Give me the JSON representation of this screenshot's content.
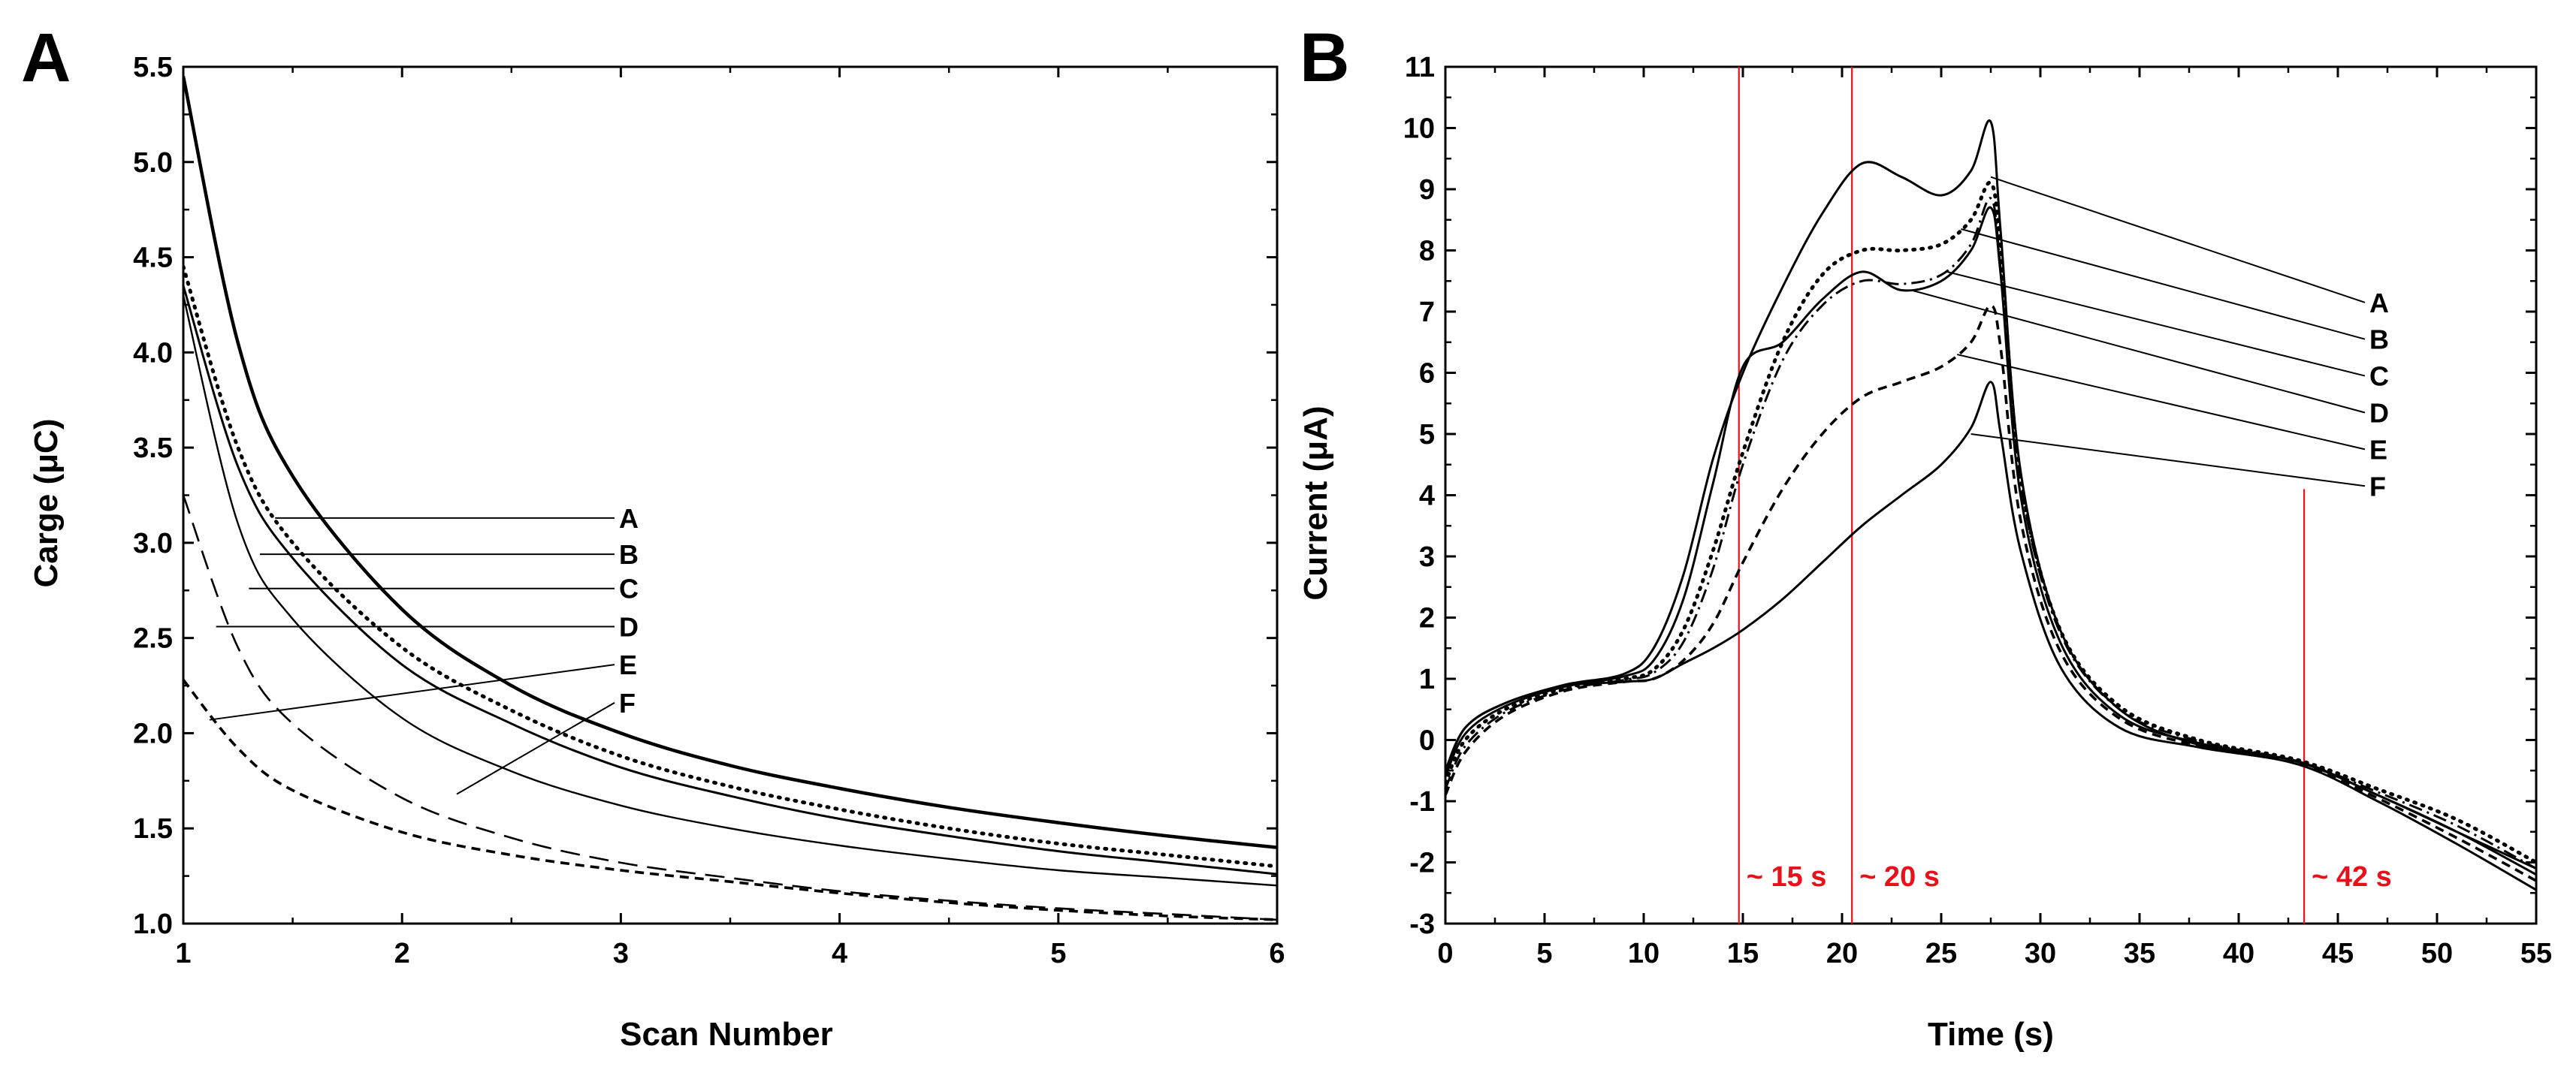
{
  "chart_data": [
    {
      "panel": "A",
      "type": "line",
      "xlabel": "Scan Number",
      "ylabel": "Carge (μC)",
      "xlim": [
        1,
        6
      ],
      "ylim": [
        1.0,
        5.5
      ],
      "xticks": [
        "1",
        "2",
        "3",
        "4",
        "5",
        "6"
      ],
      "yticks": [
        "1.0",
        "1.5",
        "2.0",
        "2.5",
        "3.0",
        "3.5",
        "4.0",
        "4.5",
        "5.0",
        "5.5"
      ],
      "grid": false,
      "series": [
        {
          "name": "A",
          "style": "solid-thick",
          "x": [
            1,
            1.25,
            1.5,
            2,
            2.5,
            3,
            3.5,
            4,
            4.5,
            5,
            5.5,
            6
          ],
          "y": [
            5.45,
            4.05,
            3.35,
            2.65,
            2.25,
            2.0,
            1.83,
            1.71,
            1.61,
            1.53,
            1.46,
            1.4
          ]
        },
        {
          "name": "B",
          "style": "dotted",
          "x": [
            1,
            1.25,
            1.5,
            2,
            2.5,
            3,
            3.5,
            4,
            4.5,
            5,
            5.5,
            6
          ],
          "y": [
            4.45,
            3.5,
            3.0,
            2.45,
            2.12,
            1.88,
            1.72,
            1.6,
            1.5,
            1.42,
            1.36,
            1.3
          ]
        },
        {
          "name": "C",
          "style": "solid",
          "x": [
            1,
            1.25,
            1.5,
            2,
            2.5,
            3,
            3.5,
            4,
            4.5,
            5,
            5.5,
            6
          ],
          "y": [
            4.35,
            3.4,
            2.92,
            2.36,
            2.05,
            1.82,
            1.67,
            1.55,
            1.46,
            1.38,
            1.32,
            1.26
          ]
        },
        {
          "name": "D",
          "style": "solid-thin",
          "x": [
            1,
            1.25,
            1.5,
            2,
            2.5,
            3,
            3.5,
            4,
            4.5,
            5,
            5.5,
            6
          ],
          "y": [
            4.3,
            3.1,
            2.6,
            2.08,
            1.8,
            1.62,
            1.5,
            1.41,
            1.34,
            1.28,
            1.24,
            1.2
          ]
        },
        {
          "name": "E",
          "style": "dashed",
          "x": [
            1,
            1.25,
            1.5,
            2,
            2.5,
            3,
            3.5,
            4,
            4.5,
            5,
            5.5,
            6
          ],
          "y": [
            3.25,
            2.45,
            2.05,
            1.66,
            1.45,
            1.32,
            1.24,
            1.17,
            1.12,
            1.08,
            1.05,
            1.02
          ]
        },
        {
          "name": "F",
          "style": "short-dash",
          "x": [
            1,
            1.25,
            1.5,
            2,
            2.5,
            3,
            3.5,
            4,
            4.5,
            5,
            5.5,
            6
          ],
          "y": [
            2.28,
            1.92,
            1.7,
            1.48,
            1.36,
            1.28,
            1.22,
            1.16,
            1.11,
            1.07,
            1.04,
            1.02
          ]
        }
      ],
      "labels": [
        {
          "text": "A",
          "y": 3.13,
          "from_x": 1.42
        },
        {
          "text": "B",
          "y": 2.94,
          "from_x": 1.35
        },
        {
          "text": "C",
          "y": 2.76,
          "from_x": 1.3
        },
        {
          "text": "D",
          "y": 2.56,
          "from_x": 1.15
        },
        {
          "text": "E",
          "y": 2.36,
          "from_x": 1.12,
          "to_y": 2.07
        },
        {
          "text": "F",
          "y": 2.16,
          "from_x": 2.25,
          "to_y": 1.68
        }
      ]
    },
    {
      "panel": "B",
      "type": "line",
      "xlabel": "Time (s)",
      "ylabel": "Current (μA)",
      "xlim": [
        0,
        55
      ],
      "ylim": [
        -3,
        11
      ],
      "xticks": [
        "0",
        "5",
        "10",
        "15",
        "20",
        "25",
        "30",
        "35",
        "40",
        "45",
        "50",
        "55"
      ],
      "yticks": [
        "-3",
        "-2",
        "-1",
        "0",
        "1",
        "2",
        "3",
        "4",
        "5",
        "6",
        "7",
        "8",
        "9",
        "10",
        "11"
      ],
      "grid": false,
      "series": [
        {
          "name": "A",
          "style": "solid",
          "x": [
            0,
            1,
            3,
            6,
            9,
            10.5,
            12,
            13.5,
            15,
            17,
            19,
            21,
            23,
            25,
            26.5,
            27.5,
            28,
            29,
            31,
            34,
            38,
            43,
            47,
            51,
            55
          ],
          "y": [
            -0.5,
            0.2,
            0.6,
            0.9,
            1.08,
            1.5,
            2.7,
            4.6,
            6.0,
            7.4,
            8.6,
            9.42,
            9.2,
            8.9,
            9.3,
            10.1,
            8.3,
            4.4,
            1.8,
            0.5,
            -0.08,
            -0.35,
            -0.9,
            -1.5,
            -2.1
          ]
        },
        {
          "name": "B",
          "style": "dotted",
          "x": [
            0,
            1,
            3,
            6,
            9,
            10.5,
            12,
            13.5,
            15,
            17,
            19,
            21,
            23,
            25,
            26.5,
            27.5,
            28,
            29,
            31,
            34,
            38,
            43,
            47,
            51,
            55
          ],
          "y": [
            -0.7,
            0.0,
            0.5,
            0.85,
            1.0,
            1.15,
            1.8,
            3.1,
            4.7,
            6.5,
            7.6,
            8.0,
            8.0,
            8.1,
            8.5,
            9.1,
            8.0,
            4.3,
            1.8,
            0.55,
            0.0,
            -0.33,
            -0.8,
            -1.3,
            -2.0
          ]
        },
        {
          "name": "C",
          "style": "dash-dot",
          "x": [
            0,
            1,
            3,
            6,
            9,
            10.5,
            12,
            13.5,
            15,
            17,
            19,
            21,
            23,
            25,
            26.5,
            27.5,
            28,
            29,
            31,
            34,
            38,
            43,
            47,
            51,
            55
          ],
          "y": [
            -0.8,
            -0.1,
            0.45,
            0.82,
            0.98,
            1.1,
            1.6,
            2.8,
            4.5,
            6.2,
            7.1,
            7.5,
            7.45,
            7.6,
            8.1,
            8.85,
            7.7,
            4.2,
            1.75,
            0.5,
            -0.02,
            -0.35,
            -0.85,
            -1.4,
            -2.1
          ]
        },
        {
          "name": "D",
          "style": "solid",
          "x": [
            0,
            1,
            3,
            6,
            9,
            10.5,
            12,
            13.5,
            15,
            17,
            19,
            21,
            23,
            25,
            26.5,
            27.5,
            28,
            29,
            31,
            34,
            38,
            43,
            47,
            51,
            55
          ],
          "y": [
            -0.6,
            0.1,
            0.55,
            0.87,
            1.04,
            1.3,
            2.3,
            4.2,
            6.1,
            6.5,
            7.2,
            7.65,
            7.35,
            7.5,
            8.0,
            8.7,
            7.6,
            4.0,
            1.6,
            0.4,
            -0.05,
            -0.36,
            -0.9,
            -1.5,
            -2.2
          ]
        },
        {
          "name": "E",
          "style": "short-dash",
          "x": [
            0,
            1,
            3,
            6,
            9,
            10.5,
            12,
            13.5,
            15,
            17,
            19,
            21,
            23,
            25,
            26.5,
            27.5,
            28,
            29,
            31,
            34,
            38,
            43,
            47,
            51,
            55
          ],
          "y": [
            -0.9,
            -0.2,
            0.4,
            0.8,
            0.95,
            1.0,
            1.3,
            1.9,
            2.9,
            4.1,
            5.0,
            5.6,
            5.85,
            6.1,
            6.5,
            7.1,
            6.4,
            3.6,
            1.45,
            0.35,
            -0.1,
            -0.38,
            -0.95,
            -1.6,
            -2.3
          ]
        },
        {
          "name": "F",
          "style": "solid",
          "x": [
            0,
            1,
            3,
            6,
            9,
            10.5,
            12,
            13.5,
            15,
            17,
            19,
            21,
            23,
            25,
            26.5,
            27.5,
            28,
            29,
            31,
            34,
            38,
            43,
            47,
            51,
            55
          ],
          "y": [
            -0.55,
            0.2,
            0.6,
            0.88,
            0.95,
            1.0,
            1.25,
            1.5,
            1.8,
            2.3,
            2.9,
            3.5,
            4.0,
            4.5,
            5.1,
            5.85,
            5.0,
            3.1,
            1.2,
            0.2,
            -0.12,
            -0.4,
            -1.0,
            -1.7,
            -2.45
          ]
        }
      ],
      "labels": [
        {
          "text": "A",
          "y": 7.15,
          "from_x": 27.5,
          "from_y": 9.2
        },
        {
          "text": "B",
          "y": 6.55,
          "from_x": 26.0,
          "from_y": 8.35
        },
        {
          "text": "C",
          "y": 5.95,
          "from_x": 25.3,
          "from_y": 7.65
        },
        {
          "text": "D",
          "y": 5.35,
          "from_x": 23.5,
          "from_y": 7.35
        },
        {
          "text": "E",
          "y": 4.75,
          "from_x": 25.8,
          "from_y": 6.3
        },
        {
          "text": "F",
          "y": 4.15,
          "from_x": 26.5,
          "from_y": 5.0
        }
      ],
      "markers": [
        {
          "x": 14.8,
          "label": "~ 15 s",
          "color": "#e8101a",
          "y_top": 11
        },
        {
          "x": 20.5,
          "label": "~ 20 s",
          "color": "#e8101a",
          "y_top": 11
        },
        {
          "x": 43.3,
          "label": "~ 42 s",
          "color": "#e8101a",
          "y_top": 4.1
        }
      ]
    }
  ]
}
